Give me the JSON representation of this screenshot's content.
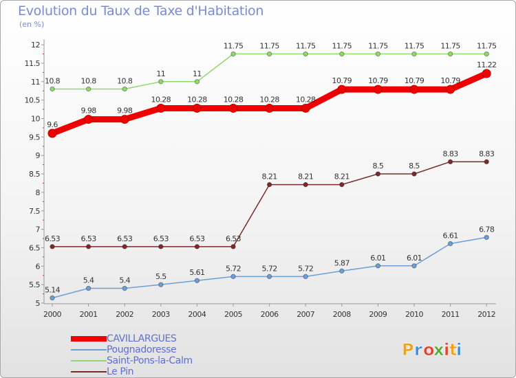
{
  "header": {
    "title": "Evolution du Taux de Taxe d'Habitation",
    "subtitle": "(en %)"
  },
  "logo": {
    "text": "Proxiti",
    "colors": [
      "#f0a21d",
      "#3d8fd9",
      "#e8412c",
      "#58a831",
      "#e8412c",
      "#f0a21d",
      "#3d8fd9"
    ]
  },
  "chart_data": {
    "type": "line",
    "title": "Evolution du Taux de Taxe d'Habitation",
    "ylabel": "(en %)",
    "xlabel": "",
    "x": [
      "2000",
      "2001",
      "2002",
      "2003",
      "2004",
      "2005",
      "2006",
      "2007",
      "2008",
      "2009",
      "2010",
      "2011",
      "2012"
    ],
    "ylim": [
      5,
      12
    ],
    "yticks": [
      "5",
      "5.5",
      "6",
      "6.5",
      "7",
      "7.5",
      "8",
      "8.5",
      "9",
      "9.5",
      "10",
      "10.5",
      "11",
      "11.5",
      "12"
    ],
    "grid": false,
    "legend_position": "bottom-left",
    "series": [
      {
        "name": "CAVILLARGUES",
        "color": "#ee0000",
        "emphasis": true,
        "values": [
          9.6,
          9.98,
          9.98,
          10.28,
          10.28,
          10.28,
          10.28,
          10.28,
          10.79,
          10.79,
          10.79,
          10.79,
          11.22
        ],
        "labels": [
          "9.6",
          "9.98",
          "9.98",
          "10.28",
          "10.28",
          "10.28",
          "10.28",
          "10.28",
          "10.79",
          "10.79",
          "10.79",
          "10.79",
          "11.22"
        ]
      },
      {
        "name": "Pougnadoresse",
        "color": "#6b9fd6",
        "emphasis": false,
        "values": [
          5.14,
          5.4,
          5.4,
          5.5,
          5.61,
          5.72,
          5.72,
          5.72,
          5.87,
          6.01,
          6.01,
          6.61,
          6.78
        ],
        "labels": [
          "5.14",
          "5.4",
          "5.4",
          "5.5",
          "5.61",
          "5.72",
          "5.72",
          "5.72",
          "5.87",
          "6.01",
          "6.01",
          "6.61",
          "6.78"
        ]
      },
      {
        "name": "Saint-Pons-la-Calm",
        "color": "#8fd86a",
        "emphasis": false,
        "values": [
          10.8,
          10.8,
          10.8,
          11,
          11,
          11.75,
          11.75,
          11.75,
          11.75,
          11.75,
          11.75,
          11.75,
          11.75
        ],
        "labels": [
          "10.8",
          "10.8",
          "10.8",
          "11",
          "11",
          "11.75",
          "11.75",
          "11.75",
          "11.75",
          "11.75",
          "11.75",
          "11.75",
          "11.75"
        ]
      },
      {
        "name": "Le Pin",
        "color": "#7a2a2a",
        "emphasis": false,
        "values": [
          6.53,
          6.53,
          6.53,
          6.53,
          6.53,
          6.53,
          8.21,
          8.21,
          8.21,
          8.5,
          8.5,
          8.83,
          8.83
        ],
        "labels": [
          "6.53",
          "6.53",
          "6.53",
          "6.53",
          "6.53",
          "6.53",
          "8.21",
          "8.21",
          "8.21",
          "8.5",
          "8.5",
          "8.83",
          "8.83"
        ]
      }
    ]
  }
}
